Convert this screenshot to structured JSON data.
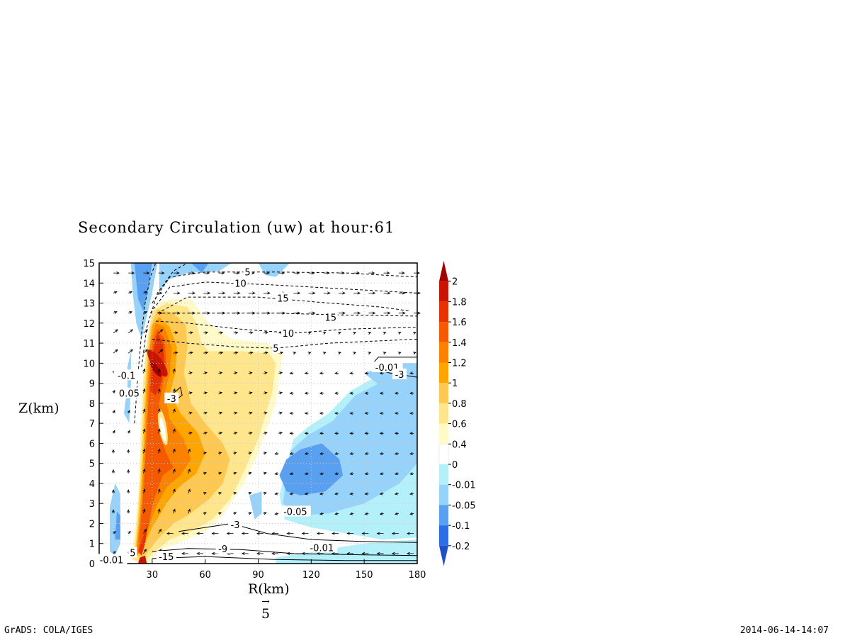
{
  "chart_data": {
    "type": "heatmap",
    "title": "Secondary Circulation (uw) at hour:61",
    "xlabel": "R(km)",
    "ylabel": "Z(km)",
    "xlim": [
      0,
      180
    ],
    "ylim": [
      0,
      15
    ],
    "x_ticks": [
      "30",
      "60",
      "90",
      "120",
      "150",
      "180"
    ],
    "y_ticks": [
      "0",
      "1",
      "2",
      "3",
      "4",
      "5",
      "6",
      "7",
      "8",
      "9",
      "10",
      "11",
      "12",
      "13",
      "14",
      "15"
    ],
    "grid": true,
    "colorbar": {
      "levels": [
        "2",
        "1.8",
        "1.6",
        "1.4",
        "1.2",
        "1",
        "0.8",
        "0.6",
        "0.4",
        "0",
        "-0.01",
        "-0.05",
        "-0.1",
        "-0.2"
      ],
      "colors": [
        "#a50000",
        "#c81400",
        "#e63200",
        "#f55a00",
        "#fa8200",
        "#ffa500",
        "#ffc850",
        "#ffe68c",
        "#fffac8",
        "#ffffff",
        "#b4f0fa",
        "#96d2fa",
        "#5aa0f0",
        "#2d6ee6",
        "#1e50c8"
      ]
    },
    "contour_labels": [
      {
        "text": "5",
        "x": 84,
        "y": 14.55
      },
      {
        "text": "10",
        "x": 80,
        "y": 14.0
      },
      {
        "text": "15",
        "x": 104,
        "y": 13.25
      },
      {
        "text": "15",
        "x": 131,
        "y": 12.3
      },
      {
        "text": "10",
        "x": 107,
        "y": 11.5
      },
      {
        "text": "5",
        "x": 100,
        "y": 10.75
      },
      {
        "text": "-0.01",
        "x": 163,
        "y": 9.8
      },
      {
        "text": "-3",
        "x": 170,
        "y": 9.45
      },
      {
        "text": "-0.1",
        "x": 15.5,
        "y": 9.4
      },
      {
        "text": "0.05",
        "x": 17,
        "y": 8.5
      },
      {
        "text": "-3",
        "x": 41,
        "y": 8.25
      },
      {
        "text": "-0.05",
        "x": 111,
        "y": 2.6
      },
      {
        "text": "-3",
        "x": 77,
        "y": 1.95
      },
      {
        "text": "-0.01",
        "x": 126,
        "y": 0.8
      },
      {
        "text": "-9",
        "x": 70,
        "y": 0.75
      },
      {
        "text": "5",
        "x": 19,
        "y": 0.55
      },
      {
        "text": "-15",
        "x": 38,
        "y": 0.35
      },
      {
        "text": "-0.01",
        "x": 7,
        "y": 0.2
      }
    ],
    "reference_vector": "5"
  },
  "footer": {
    "left": "GrADS: COLA/IGES",
    "right": "2014-06-14-14:07"
  }
}
